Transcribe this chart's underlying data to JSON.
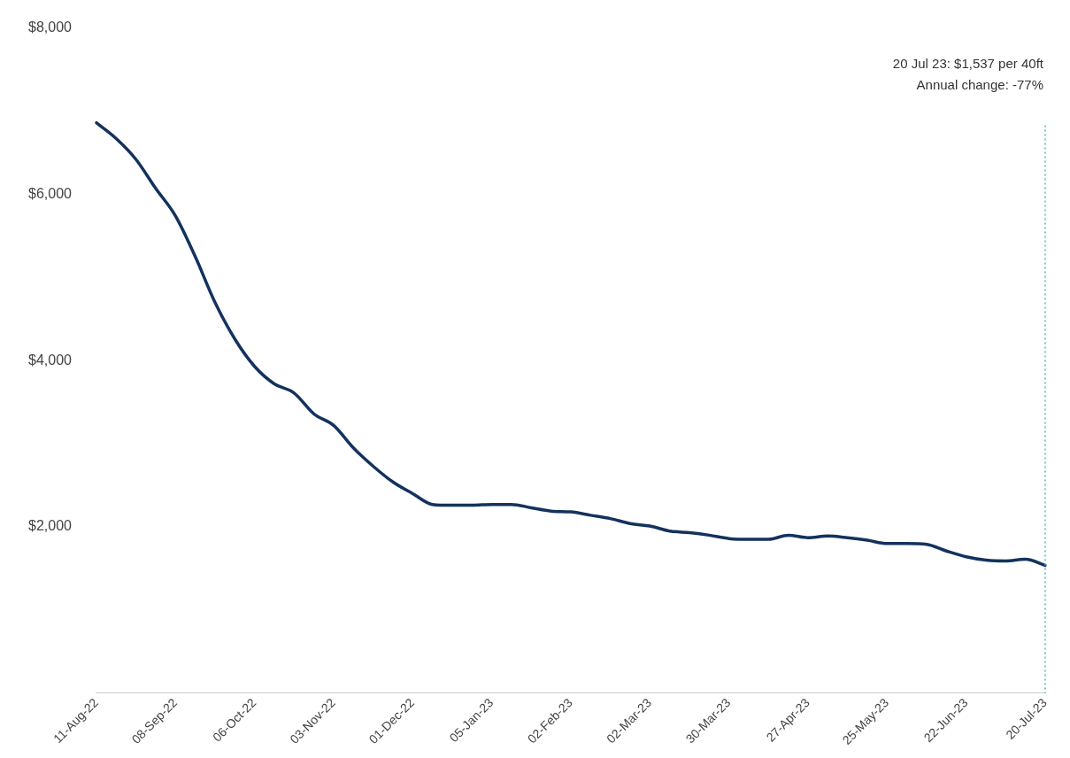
{
  "chart_data": {
    "type": "line",
    "categories": [
      "11-Aug-22",
      null,
      null,
      null,
      "08-Sep-22",
      null,
      null,
      null,
      "06-Oct-22",
      null,
      null,
      null,
      "03-Nov-22",
      null,
      null,
      null,
      "01-Dec-22",
      null,
      null,
      null,
      "05-Jan-23",
      null,
      null,
      null,
      "02-Feb-23",
      null,
      null,
      null,
      "02-Mar-23",
      null,
      null,
      null,
      "30-Mar-23",
      null,
      null,
      null,
      "27-Apr-23",
      null,
      null,
      null,
      "25-May-23",
      null,
      null,
      null,
      "22-Jun-23",
      null,
      null,
      null,
      "20-Jul-23"
    ],
    "series": [
      {
        "color": "#13325e",
        "values": [
          6860,
          6670,
          6420,
          6070,
          5740,
          5250,
          4700,
          4260,
          3930,
          3720,
          3610,
          3360,
          3220,
          2950,
          2730,
          2540,
          2400,
          2270,
          2260,
          2260,
          2270,
          2270,
          2230,
          2190,
          2180,
          2140,
          2100,
          2040,
          2010,
          1950,
          1930,
          1900,
          1860,
          1850,
          1850,
          1900,
          1870,
          1890,
          1870,
          1840,
          1800,
          1800,
          1790,
          1710,
          1640,
          1600,
          1590,
          1610,
          1537
        ]
      }
    ],
    "ylim": [
      0,
      8000
    ],
    "yticks": [
      {
        "value": 0,
        "label": null
      },
      {
        "value": 2000,
        "label": "$2,000"
      },
      {
        "value": 4000,
        "label": "$4,000"
      },
      {
        "value": 6000,
        "label": "$6,000"
      },
      {
        "value": 8000,
        "label": "$8,000"
      }
    ],
    "ref_lines": [
      {
        "axis": "x",
        "value": "20-Jul-23",
        "color": "#49b8c8",
        "line_style": "dotted"
      }
    ],
    "annotations": [
      "20 Jul 23: $1,537 per 40ft",
      "Annual change: -77%"
    ],
    "legend": false,
    "grid": false,
    "marker": "none",
    "line_style": "solid"
  }
}
